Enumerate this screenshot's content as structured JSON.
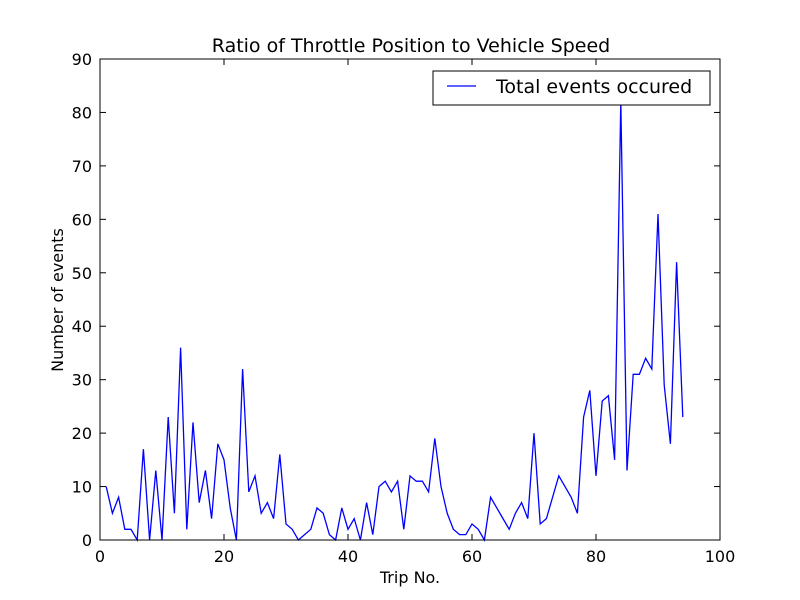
{
  "chart_data": {
    "type": "line",
    "title": "Ratio of Throttle Position to Vehicle Speed",
    "xlabel": "Trip No.",
    "ylabel": "Number of events",
    "xlim": [
      0,
      100
    ],
    "ylim": [
      0,
      90
    ],
    "xticks": [
      0,
      20,
      40,
      60,
      80,
      100
    ],
    "yticks": [
      0,
      10,
      20,
      30,
      40,
      50,
      60,
      70,
      80,
      90
    ],
    "grid": false,
    "legend_position": "top-right",
    "series": [
      {
        "name": "Total events occured",
        "color": "#0000ff",
        "x": [
          1,
          2,
          3,
          4,
          5,
          6,
          7,
          8,
          9,
          10,
          11,
          12,
          13,
          14,
          15,
          16,
          17,
          18,
          19,
          20,
          21,
          22,
          23,
          24,
          25,
          26,
          27,
          28,
          29,
          30,
          31,
          32,
          33,
          34,
          35,
          36,
          37,
          38,
          39,
          40,
          41,
          42,
          43,
          44,
          45,
          46,
          47,
          48,
          49,
          50,
          51,
          52,
          53,
          54,
          55,
          56,
          57,
          58,
          59,
          60,
          61,
          62,
          63,
          64,
          65,
          66,
          67,
          68,
          69,
          70,
          71,
          72,
          73,
          74,
          75,
          76,
          77,
          78,
          79,
          80,
          81,
          82,
          83,
          84,
          85,
          86,
          87,
          88,
          89,
          90,
          91,
          92,
          93,
          94
        ],
        "y": [
          10,
          5,
          8,
          2,
          2,
          0,
          17,
          0,
          13,
          0,
          23,
          5,
          36,
          2,
          22,
          7,
          13,
          4,
          18,
          15,
          6,
          0,
          32,
          9,
          12,
          5,
          7,
          4,
          16,
          3,
          2,
          0,
          1,
          2,
          6,
          5,
          1,
          0,
          6,
          2,
          4,
          0,
          7,
          1,
          10,
          11,
          9,
          11,
          2,
          12,
          11,
          11,
          9,
          19,
          10,
          5,
          2,
          1,
          1,
          3,
          2,
          0,
          8,
          6,
          4,
          2,
          5,
          7,
          4,
          20,
          3,
          4,
          8,
          12,
          10,
          8,
          5,
          23,
          28,
          12,
          26,
          27,
          15,
          82,
          13,
          31,
          31,
          34,
          32,
          61,
          29,
          18,
          52,
          23
        ]
      }
    ]
  }
}
